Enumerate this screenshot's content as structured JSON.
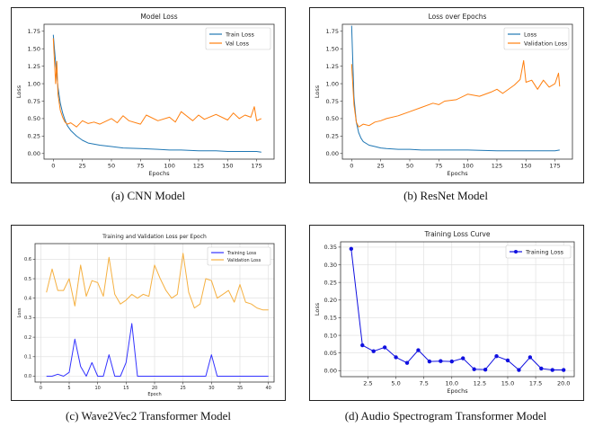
{
  "captions": {
    "a": "(a) CNN Model",
    "b": "(b) ResNet Model",
    "c": "(c) Wave2Vec2 Transformer Model",
    "d": "(d) Audio Spectrogram Transformer Model"
  },
  "colors": {
    "blue": "#1f77b4",
    "orange": "#ff7f0e",
    "wav_blue": "#3333ff",
    "wav_orange": "#f5b041",
    "ast_blue": "#1010e0"
  },
  "chart_data": [
    {
      "id": "cnn",
      "type": "line",
      "title": "Model Loss",
      "xlabel": "Epochs",
      "ylabel": "Loss",
      "xlim": [
        -8,
        190
      ],
      "ylim": [
        -0.08,
        1.85
      ],
      "xticks": [
        0,
        25,
        50,
        75,
        100,
        125,
        150,
        175
      ],
      "yticks": [
        0.0,
        0.25,
        0.5,
        0.75,
        1.0,
        1.25,
        1.5,
        1.75
      ],
      "ytick_labels": [
        "0.00",
        "0.25",
        "0.50",
        "0.75",
        "1.00",
        "1.25",
        "1.50",
        "1.75"
      ],
      "grid": false,
      "legend": "top-right",
      "series": [
        {
          "name": "Train Loss",
          "color": "#1f77b4",
          "x": [
            0,
            2,
            4,
            6,
            8,
            10,
            12,
            15,
            20,
            25,
            30,
            40,
            50,
            60,
            75,
            90,
            100,
            110,
            125,
            140,
            150,
            160,
            170,
            175,
            179
          ],
          "y": [
            1.7,
            1.3,
            0.95,
            0.72,
            0.58,
            0.48,
            0.4,
            0.33,
            0.25,
            0.19,
            0.15,
            0.12,
            0.1,
            0.08,
            0.07,
            0.06,
            0.05,
            0.05,
            0.04,
            0.04,
            0.03,
            0.03,
            0.03,
            0.03,
            0.02
          ]
        },
        {
          "name": "Val Loss",
          "color": "#ff7f0e",
          "x": [
            0,
            2,
            3,
            4,
            6,
            8,
            10,
            12,
            15,
            20,
            25,
            30,
            35,
            40,
            50,
            55,
            60,
            65,
            75,
            80,
            90,
            100,
            105,
            110,
            120,
            125,
            130,
            140,
            150,
            155,
            160,
            165,
            170,
            173,
            175,
            179
          ],
          "y": [
            1.65,
            1.0,
            1.32,
            0.85,
            0.62,
            0.52,
            0.45,
            0.42,
            0.44,
            0.38,
            0.47,
            0.43,
            0.45,
            0.42,
            0.5,
            0.44,
            0.54,
            0.47,
            0.42,
            0.55,
            0.47,
            0.52,
            0.45,
            0.6,
            0.47,
            0.55,
            0.49,
            0.56,
            0.48,
            0.58,
            0.5,
            0.55,
            0.52,
            0.67,
            0.47,
            0.5
          ]
        }
      ]
    },
    {
      "id": "resnet",
      "type": "line",
      "title": "Loss over Epochs",
      "xlabel": "Epochs",
      "ylabel": "Loss",
      "xlim": [
        -8,
        190
      ],
      "ylim": [
        -0.08,
        1.85
      ],
      "xticks": [
        0,
        25,
        50,
        75,
        100,
        125,
        150,
        175
      ],
      "yticks": [
        0.0,
        0.25,
        0.5,
        0.75,
        1.0,
        1.25,
        1.5,
        1.75
      ],
      "ytick_labels": [
        "0.00",
        "0.25",
        "0.50",
        "0.75",
        "1.00",
        "1.25",
        "1.50",
        "1.75"
      ],
      "grid": false,
      "legend": "top-right",
      "series": [
        {
          "name": "Loss",
          "color": "#1f77b4",
          "x": [
            0,
            2,
            4,
            6,
            8,
            10,
            15,
            20,
            25,
            30,
            40,
            50,
            60,
            75,
            100,
            125,
            150,
            175,
            179
          ],
          "y": [
            1.83,
            0.8,
            0.45,
            0.3,
            0.22,
            0.17,
            0.12,
            0.1,
            0.08,
            0.07,
            0.06,
            0.06,
            0.05,
            0.05,
            0.05,
            0.04,
            0.04,
            0.04,
            0.05
          ]
        },
        {
          "name": "Validation Loss",
          "color": "#ff7f0e",
          "x": [
            0,
            2,
            4,
            6,
            8,
            10,
            15,
            20,
            25,
            30,
            40,
            50,
            60,
            70,
            75,
            80,
            90,
            100,
            110,
            120,
            125,
            130,
            140,
            145,
            148,
            150,
            155,
            160,
            165,
            170,
            175,
            178,
            179
          ],
          "y": [
            1.28,
            0.7,
            0.45,
            0.38,
            0.4,
            0.42,
            0.4,
            0.45,
            0.47,
            0.5,
            0.54,
            0.6,
            0.66,
            0.72,
            0.7,
            0.75,
            0.77,
            0.85,
            0.82,
            0.88,
            0.92,
            0.86,
            0.98,
            1.06,
            1.33,
            1.02,
            1.05,
            0.92,
            1.05,
            0.95,
            1.0,
            1.15,
            0.96
          ]
        }
      ]
    },
    {
      "id": "wav2vec2",
      "type": "line",
      "title": "Training and Validation Loss per Epoch",
      "xlabel": "Epoch",
      "ylabel": "Loss",
      "xlim": [
        -1,
        41
      ],
      "ylim": [
        -0.03,
        0.68
      ],
      "xticks": [
        0,
        5,
        10,
        15,
        20,
        25,
        30,
        35,
        40
      ],
      "yticks": [
        0.0,
        0.1,
        0.2,
        0.3,
        0.4,
        0.5,
        0.6
      ],
      "ytick_labels": [
        "0.0",
        "0.1",
        "0.2",
        "0.3",
        "0.4",
        "0.5",
        "0.6"
      ],
      "grid": true,
      "legend": "top-right",
      "series": [
        {
          "name": "Training Loss",
          "color": "#3333ff",
          "x": [
            1,
            2,
            3,
            4,
            5,
            6,
            7,
            8,
            9,
            10,
            11,
            12,
            13,
            14,
            15,
            16,
            17,
            18,
            19,
            20,
            21,
            22,
            23,
            24,
            25,
            26,
            27,
            28,
            29,
            30,
            31,
            32,
            33,
            34,
            35,
            36,
            37,
            38,
            39,
            40
          ],
          "y": [
            0.0,
            0.0,
            0.01,
            0.0,
            0.02,
            0.19,
            0.05,
            0.0,
            0.07,
            0.0,
            0.0,
            0.11,
            0.0,
            0.0,
            0.07,
            0.27,
            0.0,
            0.0,
            0.0,
            0.0,
            0.0,
            0.0,
            0.0,
            0.0,
            0.0,
            0.0,
            0.0,
            0.0,
            0.0,
            0.11,
            0.0,
            0.0,
            0.0,
            0.0,
            0.0,
            0.0,
            0.0,
            0.0,
            0.0,
            0.0
          ]
        },
        {
          "name": "Validation Loss",
          "color": "#f5b041",
          "x": [
            1,
            2,
            3,
            4,
            5,
            6,
            7,
            8,
            9,
            10,
            11,
            12,
            13,
            14,
            15,
            16,
            17,
            18,
            19,
            20,
            21,
            22,
            23,
            24,
            25,
            26,
            27,
            28,
            29,
            30,
            31,
            32,
            33,
            34,
            35,
            36,
            37,
            38,
            39,
            40
          ],
          "y": [
            0.43,
            0.55,
            0.44,
            0.44,
            0.5,
            0.36,
            0.57,
            0.41,
            0.49,
            0.48,
            0.41,
            0.61,
            0.42,
            0.37,
            0.39,
            0.42,
            0.4,
            0.42,
            0.41,
            0.57,
            0.5,
            0.44,
            0.4,
            0.42,
            0.63,
            0.43,
            0.35,
            0.37,
            0.5,
            0.49,
            0.4,
            0.42,
            0.44,
            0.38,
            0.47,
            0.38,
            0.37,
            0.35,
            0.34,
            0.34
          ]
        }
      ]
    },
    {
      "id": "ast",
      "type": "line",
      "title": "Training Loss Curve",
      "xlabel": "Epochs",
      "ylabel": "Loss",
      "xlim": [
        0.05,
        20.95
      ],
      "ylim": [
        -0.017,
        0.365
      ],
      "xticks": [
        2.5,
        5.0,
        7.5,
        10.0,
        12.5,
        15.0,
        17.5,
        20.0
      ],
      "xtick_labels": [
        "2.5",
        "5.0",
        "7.5",
        "10.0",
        "12.5",
        "15.0",
        "17.5",
        "20.0"
      ],
      "yticks": [
        0.0,
        0.05,
        0.1,
        0.15,
        0.2,
        0.25,
        0.3,
        0.35
      ],
      "ytick_labels": [
        "0.00",
        "0.05",
        "0.10",
        "0.15",
        "0.20",
        "0.25",
        "0.30",
        "0.35"
      ],
      "grid": true,
      "legend": "top-right",
      "series": [
        {
          "name": "Training Loss",
          "color": "#1010e0",
          "markers": true,
          "x": [
            1,
            2,
            3,
            4,
            5,
            6,
            7,
            8,
            9,
            10,
            11,
            12,
            13,
            14,
            15,
            16,
            17,
            18,
            19,
            20
          ],
          "y": [
            0.345,
            0.072,
            0.055,
            0.066,
            0.038,
            0.022,
            0.058,
            0.026,
            0.027,
            0.026,
            0.035,
            0.004,
            0.003,
            0.041,
            0.029,
            0.002,
            0.038,
            0.006,
            0.002,
            0.002
          ]
        }
      ]
    }
  ]
}
